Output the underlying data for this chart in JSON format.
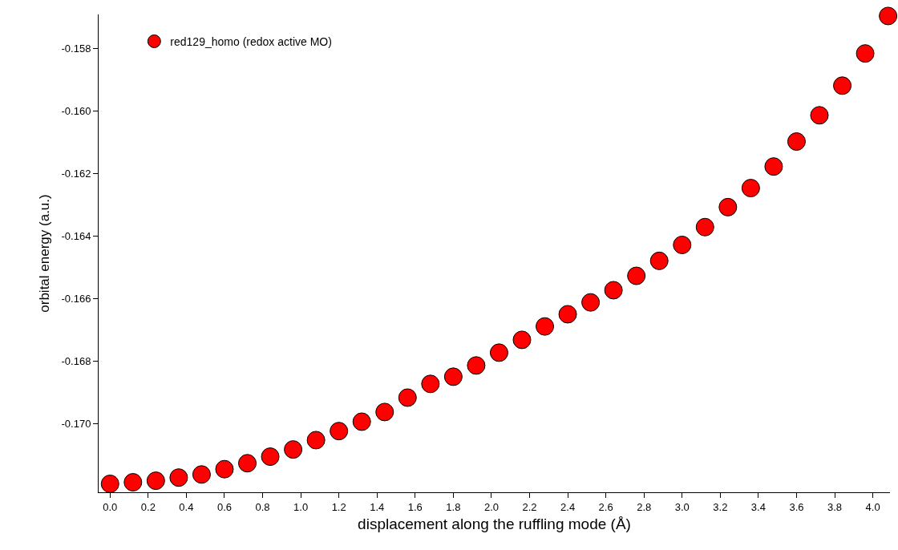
{
  "chart_data": {
    "type": "scatter",
    "xlabel": "displacement along the ruffling mode (Å)",
    "ylabel": "orbital energy (a.u.)",
    "x": [
      0.0,
      0.12,
      0.24,
      0.36,
      0.48,
      0.6,
      0.72,
      0.84,
      0.96,
      1.08,
      1.2,
      1.32,
      1.44,
      1.56,
      1.68,
      1.8,
      1.92,
      2.04,
      2.16,
      2.28,
      2.4,
      2.52,
      2.64,
      2.76,
      2.88,
      3.0,
      3.12,
      3.24,
      3.36,
      3.48,
      3.6,
      3.72,
      3.84,
      3.96,
      4.08
    ],
    "series": [
      {
        "name": "red129_homo (redox active MO)",
        "color": "#ff0000",
        "values": [
          -0.17193,
          -0.17188,
          -0.17183,
          -0.17173,
          -0.17163,
          -0.17146,
          -0.17127,
          -0.17106,
          -0.17083,
          -0.17053,
          -0.17024,
          -0.16994,
          -0.16963,
          -0.16917,
          -0.16873,
          -0.1685,
          -0.16814,
          -0.16773,
          -0.16732,
          -0.16689,
          -0.1665,
          -0.16612,
          -0.16573,
          -0.16527,
          -0.16479,
          -0.16428,
          -0.16371,
          -0.16307,
          -0.16246,
          -0.16177,
          -0.16097,
          -0.16013,
          -0.15918,
          -0.15815,
          -0.15695
        ]
      }
    ],
    "xlim": [
      -0.06,
      4.09
    ],
    "ylim": [
      -0.1722,
      -0.1569
    ],
    "xticks": [
      {
        "value": 0,
        "label": "0.0"
      },
      0.2,
      0.4,
      0.6,
      0.8,
      {
        "value": 1,
        "label": "1.0"
      },
      1.2,
      1.4,
      1.6,
      1.8,
      {
        "value": 2,
        "label": "2.0"
      },
      2.2,
      2.4,
      2.6,
      2.8,
      {
        "value": 3,
        "label": "3.0"
      },
      3.2,
      3.4,
      3.6,
      3.8,
      {
        "value": 4,
        "label": "4.0"
      }
    ],
    "yticks": [
      -0.158,
      {
        "value": -0.16,
        "label": "-0.160"
      },
      -0.162,
      -0.164,
      -0.166,
      -0.168,
      {
        "value": -0.17,
        "label": "-0.170"
      }
    ],
    "legend": "top left",
    "marker": "circle"
  }
}
